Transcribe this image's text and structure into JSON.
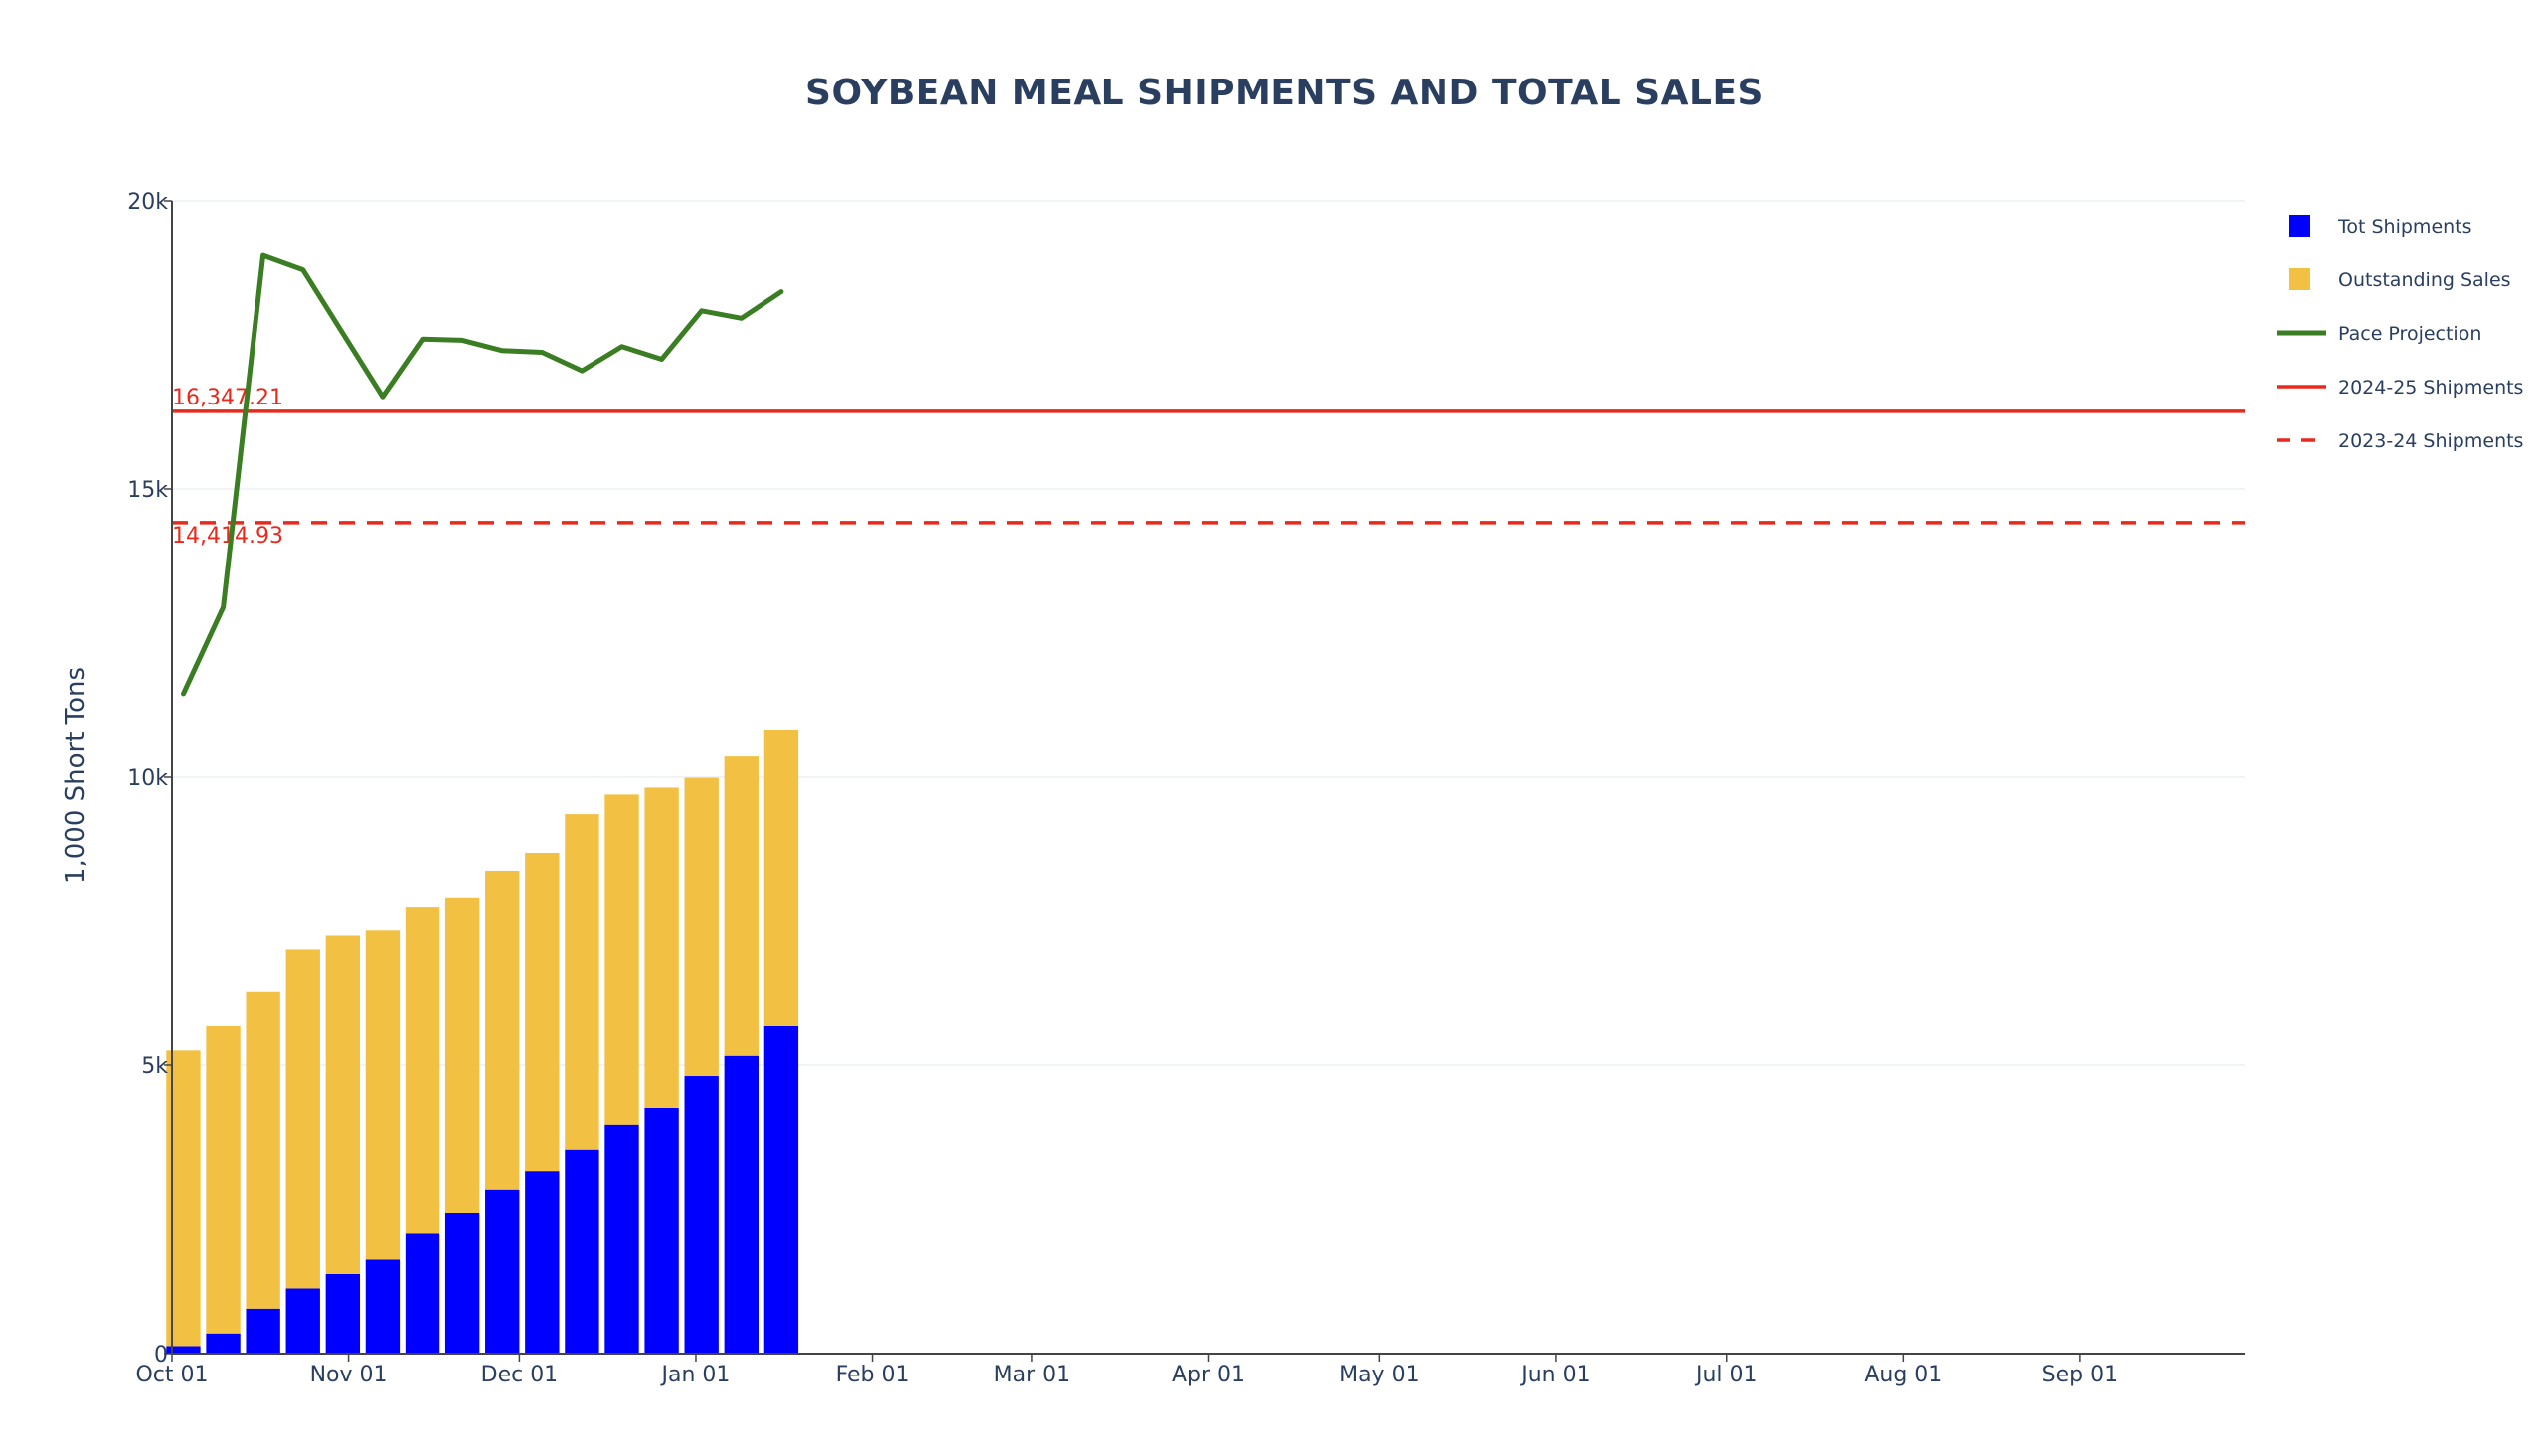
{
  "chart_data": {
    "type": "bar",
    "title": "SOYBEAN MEAL SHIPMENTS AND TOTAL SALES",
    "xlabel": "",
    "ylabel": "1,000 Short Tons",
    "ylim": [
      0,
      20000
    ],
    "yticks": [
      0,
      5000,
      10000,
      15000,
      20000
    ],
    "ytick_labels": [
      "0",
      "5k",
      "10k",
      "15k",
      "20k"
    ],
    "xlim": [
      "2024-10-01",
      "2025-09-30"
    ],
    "xticks": [
      "2024-10-01",
      "2024-11-01",
      "2024-12-01",
      "2025-01-01",
      "2025-02-01",
      "2025-03-01",
      "2025-04-01",
      "2025-05-01",
      "2025-06-01",
      "2025-07-01",
      "2025-08-01",
      "2025-09-01"
    ],
    "xtick_labels": [
      "Oct 01",
      "Nov 01",
      "Dec 01",
      "Jan 01",
      "Feb 01",
      "Mar 01",
      "Apr 01",
      "May 01",
      "Jun 01",
      "Jul 01",
      "Aug 01",
      "Sep 01"
    ],
    "grid": "horizontal",
    "legend_position": "right",
    "barmode": "stack",
    "dates": [
      "2024-10-03",
      "2024-10-10",
      "2024-10-17",
      "2024-10-24",
      "2024-10-31",
      "2024-11-07",
      "2024-11-14",
      "2024-11-21",
      "2024-11-28",
      "2024-12-05",
      "2024-12-12",
      "2024-12-19",
      "2024-12-26",
      "2025-01-02",
      "2025-01-09",
      "2025-01-16"
    ],
    "series": [
      {
        "name": "Tot Shipments",
        "type": "bar",
        "color": "#0000ff",
        "values": [
          130,
          350,
          780,
          1130,
          1380,
          1630,
          2080,
          2450,
          2850,
          3170,
          3540,
          3970,
          4260,
          4810,
          5160,
          5690
        ]
      },
      {
        "name": "Outstanding Sales",
        "type": "bar",
        "color": "#f2c144",
        "values": [
          5140,
          5340,
          5500,
          5880,
          5870,
          5710,
          5660,
          5450,
          5530,
          5520,
          5820,
          5730,
          5560,
          5180,
          5200,
          5120
        ]
      },
      {
        "name": "Pace Projection",
        "type": "line",
        "color": "#3a7d22",
        "values": [
          11450,
          12950,
          19050,
          18800,
          17700,
          16600,
          17600,
          17580,
          17400,
          17370,
          17050,
          17470,
          17250,
          18090,
          17960,
          18420
        ]
      },
      {
        "name": "2024-25 Shipments",
        "type": "hline",
        "color": "#e8291c",
        "dash": "solid",
        "value": 16347.21,
        "label": "16,347.21"
      },
      {
        "name": "2023-24 Shipments",
        "type": "hline",
        "color": "#e8291c",
        "dash": "dashed",
        "value": 14414.93,
        "label": "14,414.93"
      }
    ]
  }
}
